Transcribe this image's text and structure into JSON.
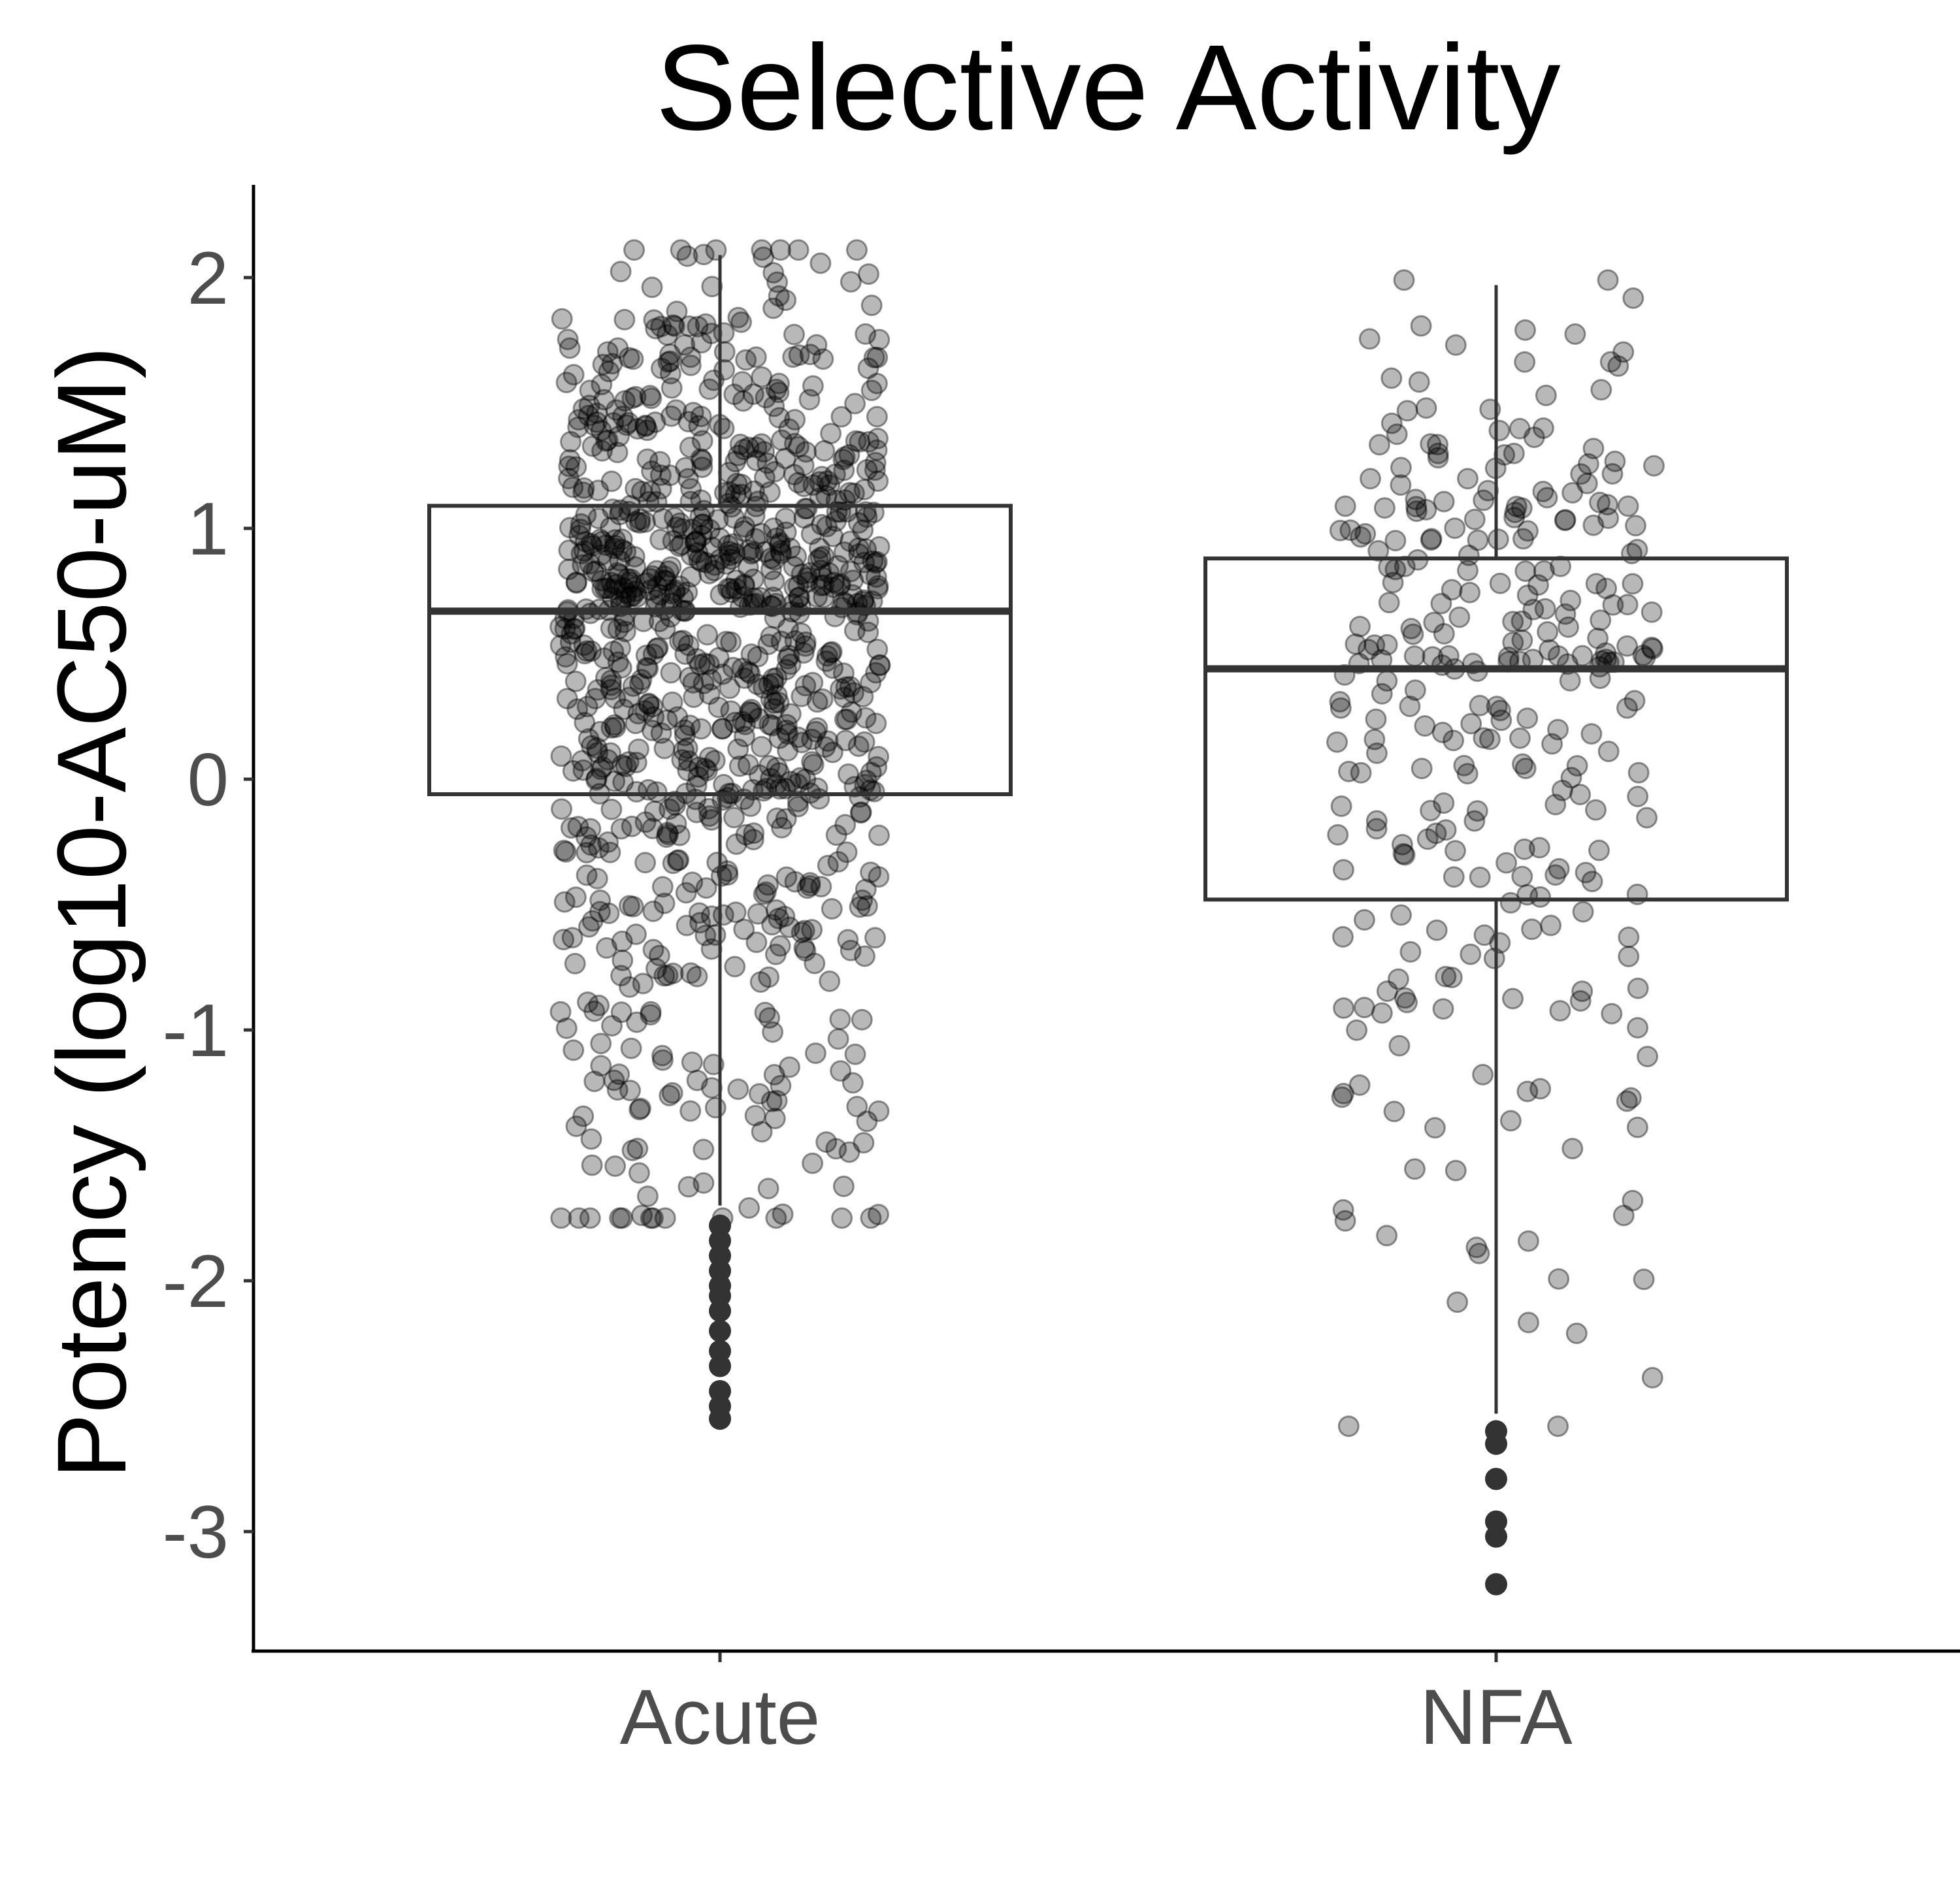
{
  "chart_data": {
    "type": "box",
    "title": "Selective Activity",
    "xlabel": "",
    "ylabel": "Potency (log10-AC50-uM)",
    "ylim": [
      -3.48,
      2.36
    ],
    "yticks": [
      2,
      1,
      0,
      -1,
      -2,
      -3
    ],
    "ytick_labels": [
      "2",
      "1",
      "0",
      "-1",
      "-2",
      "-3"
    ],
    "categories": [
      "Acute",
      "NFA"
    ],
    "grid": false,
    "legend": "none",
    "point_color": "#000000",
    "box_color": "#333333",
    "groups": [
      {
        "category": "Acute",
        "q1": -0.06,
        "median": 0.67,
        "q3": 1.09,
        "whisker_low": -1.7,
        "whisker_high": 2.09,
        "outliers": [
          -1.78,
          -1.84,
          -1.9,
          -1.96,
          -2.02,
          -2.06,
          -2.12,
          -2.2,
          -2.28,
          -2.34,
          -2.44,
          -2.5,
          -2.55
        ],
        "n_points": 980
      },
      {
        "category": "NFA",
        "q1": -0.48,
        "median": 0.44,
        "q3": 0.88,
        "whisker_low": -2.53,
        "whisker_high": 1.97,
        "outliers": [
          -2.6,
          -2.65,
          -2.79,
          -2.96,
          -3.02,
          -3.21
        ],
        "n_points": 300
      }
    ]
  }
}
